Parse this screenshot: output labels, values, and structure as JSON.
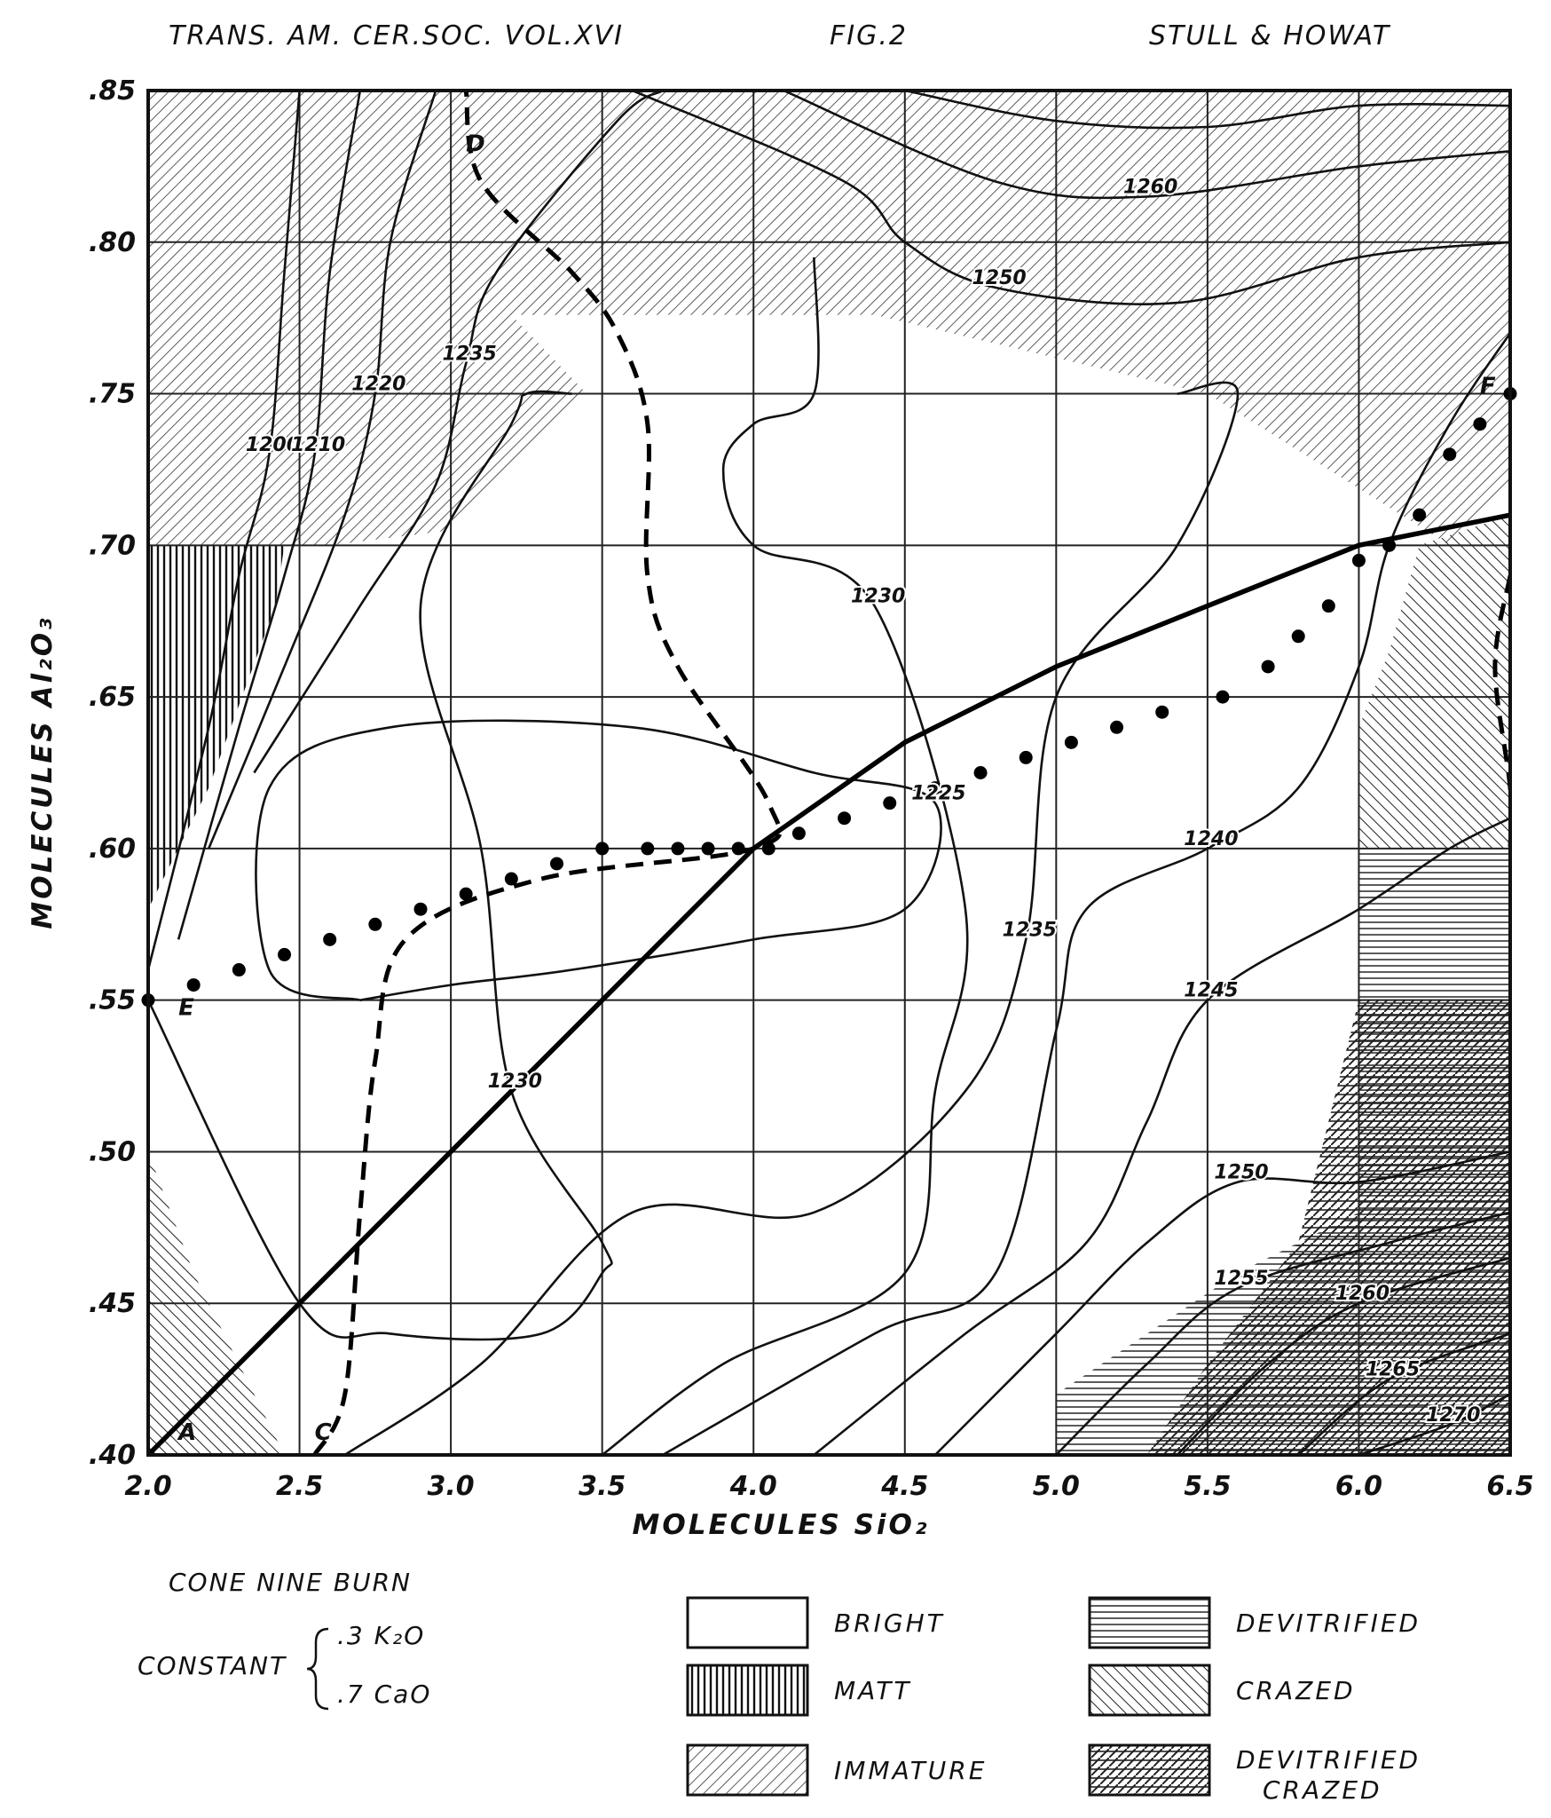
{
  "header": {
    "journal": "TRANS. AM. CER.SOC. VOL.XVI",
    "figure": "FIG.2",
    "authors": "STULL & HOWAT"
  },
  "chart_data": {
    "type": "contour",
    "xlabel": "MOLECULES SiO₂",
    "ylabel": "MOLECULES Al₂O₃",
    "xlim": [
      2.0,
      6.5
    ],
    "ylim": [
      0.4,
      0.85
    ],
    "xticks": [
      2.0,
      2.5,
      3.0,
      3.5,
      4.0,
      4.5,
      5.0,
      5.5,
      6.0,
      6.5
    ],
    "xticklabels": [
      "2.0",
      "2.5",
      "3.0",
      "3.5",
      "4.0",
      "4.5",
      "5.0",
      "5.5",
      "6.0",
      "6.5"
    ],
    "yticks": [
      0.4,
      0.45,
      0.5,
      0.55,
      0.6,
      0.65,
      0.7,
      0.75,
      0.8,
      0.85
    ],
    "yticklabels": [
      ".40",
      ".45",
      ".50",
      ".55",
      ".60",
      ".65",
      ".70",
      ".75",
      ".80",
      ".85"
    ],
    "grid": true,
    "regions": [
      {
        "type": "immature",
        "points": [
          [
            2.0,
            0.85
          ],
          [
            6.5,
            0.85
          ],
          [
            6.5,
            0.72
          ],
          [
            6.3,
            0.7
          ],
          [
            5.5,
            0.75
          ],
          [
            4.4,
            0.776
          ],
          [
            3.2,
            0.776
          ],
          [
            3.45,
            0.75
          ],
          [
            3.0,
            0.705
          ],
          [
            2.6,
            0.7
          ],
          [
            2.0,
            0.7
          ]
        ]
      },
      {
        "type": "matt",
        "points": [
          [
            2.0,
            0.7
          ],
          [
            2.45,
            0.7
          ],
          [
            2.42,
            0.68
          ],
          [
            2.2,
            0.62
          ],
          [
            2.0,
            0.58
          ]
        ]
      },
      {
        "type": "crazed",
        "points": [
          [
            6.5,
            0.71
          ],
          [
            6.2,
            0.7
          ],
          [
            6.1,
            0.665
          ],
          [
            6.0,
            0.64
          ],
          [
            6.0,
            0.6
          ],
          [
            6.5,
            0.6
          ]
        ]
      },
      {
        "type": "crazed",
        "points": [
          [
            2.0,
            0.5
          ],
          [
            2.0,
            0.4
          ],
          [
            2.45,
            0.4
          ],
          [
            2.15,
            0.46
          ]
        ]
      },
      {
        "type": "devitrified",
        "points": [
          [
            6.5,
            0.6
          ],
          [
            6.0,
            0.6
          ],
          [
            6.0,
            0.55
          ],
          [
            6.0,
            0.48
          ],
          [
            5.6,
            0.46
          ],
          [
            5.0,
            0.42
          ],
          [
            5.0,
            0.4
          ],
          [
            6.5,
            0.4
          ]
        ]
      },
      {
        "type": "devitrified-crazed",
        "points": [
          [
            6.5,
            0.55
          ],
          [
            6.0,
            0.55
          ],
          [
            5.8,
            0.47
          ],
          [
            5.5,
            0.43
          ],
          [
            5.3,
            0.4
          ],
          [
            6.5,
            0.4
          ]
        ]
      }
    ],
    "isotherms": [
      {
        "label": "1200",
        "points": [
          [
            2.0,
            0.56
          ],
          [
            2.2,
            0.64
          ],
          [
            2.3,
            0.69
          ],
          [
            2.4,
            0.73
          ],
          [
            2.45,
            0.79
          ],
          [
            2.5,
            0.85
          ]
        ]
      },
      {
        "label": "1210",
        "points": [
          [
            2.1,
            0.57
          ],
          [
            2.3,
            0.64
          ],
          [
            2.45,
            0.69
          ],
          [
            2.55,
            0.73
          ],
          [
            2.6,
            0.79
          ],
          [
            2.7,
            0.85
          ]
        ]
      },
      {
        "label": "1220",
        "points": [
          [
            2.2,
            0.6
          ],
          [
            2.45,
            0.66
          ],
          [
            2.65,
            0.71
          ],
          [
            2.75,
            0.75
          ],
          [
            2.8,
            0.8
          ],
          [
            2.95,
            0.85
          ]
        ]
      },
      {
        "label": "1235",
        "points": [
          [
            2.35,
            0.625
          ],
          [
            2.7,
            0.68
          ],
          [
            2.95,
            0.72
          ],
          [
            3.05,
            0.76
          ],
          [
            3.15,
            0.79
          ],
          [
            3.55,
            0.84
          ],
          [
            3.7,
            0.85
          ]
        ]
      },
      {
        "label": "1230",
        "points": [
          [
            2.0,
            0.55
          ],
          [
            2.5,
            0.45
          ],
          [
            2.8,
            0.44
          ],
          [
            3.3,
            0.44
          ],
          [
            3.5,
            0.46
          ],
          [
            3.5,
            0.47
          ],
          [
            3.2,
            0.52
          ],
          [
            3.1,
            0.6
          ],
          [
            2.9,
            0.68
          ],
          [
            3.2,
            0.74
          ],
          [
            3.25,
            0.75
          ],
          [
            3.4,
            0.75
          ]
        ]
      },
      {
        "label": "1225",
        "points": [
          [
            2.7,
            0.55
          ],
          [
            2.4,
            0.56
          ],
          [
            2.4,
            0.62
          ],
          [
            2.8,
            0.64
          ],
          [
            3.6,
            0.64
          ],
          [
            4.2,
            0.625
          ],
          [
            4.6,
            0.615
          ],
          [
            4.5,
            0.58
          ],
          [
            4.0,
            0.57
          ],
          [
            3.4,
            0.56
          ],
          [
            3.0,
            0.555
          ],
          [
            2.7,
            0.55
          ]
        ]
      },
      {
        "label": "1230",
        "points": [
          [
            3.5,
            0.4
          ],
          [
            3.9,
            0.43
          ],
          [
            4.5,
            0.46
          ],
          [
            4.6,
            0.52
          ],
          [
            4.7,
            0.58
          ],
          [
            4.4,
            0.68
          ],
          [
            4.0,
            0.7
          ],
          [
            3.9,
            0.725
          ],
          [
            4.0,
            0.74
          ],
          [
            4.2,
            0.75
          ],
          [
            4.2,
            0.795
          ]
        ]
      },
      {
        "label": "1235",
        "points": [
          [
            2.65,
            0.4
          ],
          [
            3.1,
            0.43
          ],
          [
            3.6,
            0.48
          ],
          [
            4.2,
            0.48
          ],
          [
            4.7,
            0.52
          ],
          [
            4.9,
            0.57
          ],
          [
            5.0,
            0.65
          ],
          [
            5.4,
            0.7
          ],
          [
            5.6,
            0.75
          ],
          [
            5.4,
            0.75
          ]
        ]
      },
      {
        "label": "1240",
        "points": [
          [
            3.7,
            0.4
          ],
          [
            4.4,
            0.44
          ],
          [
            4.8,
            0.46
          ],
          [
            5.0,
            0.54
          ],
          [
            5.1,
            0.58
          ],
          [
            5.5,
            0.6
          ],
          [
            5.8,
            0.62
          ],
          [
            6.0,
            0.66
          ],
          [
            6.1,
            0.7
          ],
          [
            6.3,
            0.74
          ],
          [
            6.5,
            0.77
          ]
        ]
      },
      {
        "label": "1245",
        "points": [
          [
            4.2,
            0.4
          ],
          [
            4.7,
            0.44
          ],
          [
            5.1,
            0.47
          ],
          [
            5.3,
            0.51
          ],
          [
            5.5,
            0.55
          ],
          [
            6.0,
            0.58
          ],
          [
            6.3,
            0.6
          ],
          [
            6.5,
            0.61
          ]
        ]
      },
      {
        "label": "1250",
        "points": [
          [
            4.6,
            0.4
          ],
          [
            5.0,
            0.44
          ],
          [
            5.3,
            0.47
          ],
          [
            5.6,
            0.49
          ],
          [
            6.0,
            0.49
          ],
          [
            6.5,
            0.5
          ]
        ]
      },
      {
        "label": "1255",
        "points": [
          [
            5.0,
            0.4
          ],
          [
            5.3,
            0.43
          ],
          [
            5.6,
            0.455
          ],
          [
            6.1,
            0.47
          ],
          [
            6.5,
            0.48
          ]
        ]
      },
      {
        "label": "1260",
        "points": [
          [
            5.4,
            0.4
          ],
          [
            5.7,
            0.43
          ],
          [
            6.0,
            0.45
          ],
          [
            6.5,
            0.465
          ]
        ]
      },
      {
        "label": "1265",
        "points": [
          [
            5.8,
            0.4
          ],
          [
            6.1,
            0.425
          ],
          [
            6.5,
            0.44
          ]
        ]
      },
      {
        "label": "1270",
        "points": [
          [
            6.0,
            0.4
          ],
          [
            6.3,
            0.41
          ],
          [
            6.5,
            0.42
          ]
        ]
      },
      {
        "label": "1250",
        "points": [
          [
            3.6,
            0.85
          ],
          [
            4.3,
            0.82
          ],
          [
            4.5,
            0.8
          ],
          [
            4.8,
            0.785
          ],
          [
            5.4,
            0.78
          ],
          [
            6.0,
            0.795
          ],
          [
            6.5,
            0.8
          ]
        ]
      },
      {
        "label": "1260",
        "points": [
          [
            4.1,
            0.85
          ],
          [
            4.8,
            0.82
          ],
          [
            5.3,
            0.815
          ],
          [
            6.0,
            0.825
          ],
          [
            6.5,
            0.83
          ]
        ]
      },
      {
        "label": "",
        "points": [
          [
            4.5,
            0.85
          ],
          [
            5.0,
            0.84
          ],
          [
            5.5,
            0.838
          ],
          [
            6.0,
            0.845
          ],
          [
            6.5,
            0.845
          ]
        ]
      }
    ],
    "dashed_boundary": [
      [
        2.55,
        0.4
      ],
      [
        2.65,
        0.42
      ],
      [
        2.7,
        0.48
      ],
      [
        2.75,
        0.53
      ],
      [
        2.85,
        0.57
      ],
      [
        3.3,
        0.59
      ],
      [
        4.0,
        0.6
      ],
      [
        4.05,
        0.615
      ],
      [
        3.75,
        0.66
      ],
      [
        3.65,
        0.69
      ],
      [
        3.65,
        0.74
      ],
      [
        3.55,
        0.77
      ],
      [
        3.4,
        0.79
      ],
      [
        3.1,
        0.82
      ],
      [
        3.05,
        0.85
      ]
    ],
    "dashed_edge": [
      [
        5.9,
        0.85
      ],
      [
        5.95,
        0.855
      ],
      [
        6.1,
        0.855
      ]
    ],
    "dashed_right": [
      [
        6.5,
        0.69
      ],
      [
        6.45,
        0.66
      ],
      [
        6.5,
        0.62
      ],
      [
        6.5,
        0.6
      ]
    ],
    "solid_diagonal": [
      [
        2.0,
        0.4
      ],
      [
        2.5,
        0.45
      ],
      [
        3.0,
        0.5
      ],
      [
        3.5,
        0.55
      ],
      [
        4.0,
        0.6
      ],
      [
        4.5,
        0.635
      ],
      [
        5.0,
        0.66
      ],
      [
        5.5,
        0.68
      ],
      [
        6.0,
        0.7
      ],
      [
        6.5,
        0.71
      ]
    ],
    "dotted_points": [
      [
        2.0,
        0.55
      ],
      [
        2.15,
        0.555
      ],
      [
        2.3,
        0.56
      ],
      [
        2.45,
        0.565
      ],
      [
        2.6,
        0.57
      ],
      [
        2.75,
        0.575
      ],
      [
        2.9,
        0.58
      ],
      [
        3.05,
        0.585
      ],
      [
        3.2,
        0.59
      ],
      [
        3.35,
        0.595
      ],
      [
        3.5,
        0.6
      ],
      [
        3.65,
        0.6
      ],
      [
        3.75,
        0.6
      ],
      [
        3.85,
        0.6
      ],
      [
        3.95,
        0.6
      ],
      [
        4.05,
        0.6
      ],
      [
        4.15,
        0.605
      ],
      [
        4.3,
        0.61
      ],
      [
        4.45,
        0.615
      ],
      [
        4.6,
        0.62
      ],
      [
        4.75,
        0.625
      ],
      [
        4.9,
        0.63
      ],
      [
        5.05,
        0.635
      ],
      [
        5.2,
        0.64
      ],
      [
        5.35,
        0.645
      ],
      [
        5.55,
        0.65
      ],
      [
        5.7,
        0.66
      ],
      [
        5.8,
        0.67
      ],
      [
        5.9,
        0.68
      ],
      [
        6.0,
        0.695
      ],
      [
        6.1,
        0.7
      ],
      [
        6.2,
        0.71
      ],
      [
        6.3,
        0.73
      ],
      [
        6.4,
        0.74
      ],
      [
        6.5,
        0.75
      ]
    ],
    "point_labels": [
      {
        "text": "A",
        "x": 2.1,
        "y": 0.405
      },
      {
        "text": "C",
        "x": 2.55,
        "y": 0.405
      },
      {
        "text": "E",
        "x": 2.1,
        "y": 0.545
      },
      {
        "text": "D",
        "x": 3.05,
        "y": 0.83
      },
      {
        "text": "F",
        "x": 6.4,
        "y": 0.75
      }
    ]
  },
  "notes": {
    "burn": "CONE NINE BURN",
    "constant_label": "CONSTANT",
    "constant_values": [
      ".3 K₂O",
      ".7 CaO"
    ]
  },
  "legend": {
    "items": [
      {
        "label": "BRIGHT",
        "pattern": "bright"
      },
      {
        "label": "DEVITRIFIED",
        "pattern": "devitrified"
      },
      {
        "label": "MATT",
        "pattern": "matt"
      },
      {
        "label": "CRAZED",
        "pattern": "crazed"
      },
      {
        "label": "IMMATURE",
        "pattern": "immature"
      },
      {
        "label": "DEVITRIFIED CRAZED",
        "pattern": "devitrified-crazed"
      }
    ]
  }
}
